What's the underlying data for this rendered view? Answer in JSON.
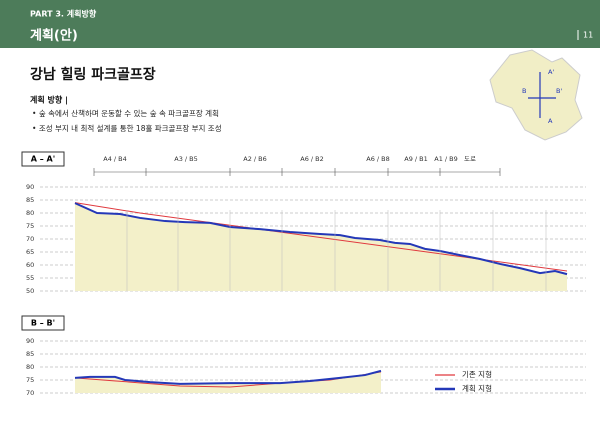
{
  "header": {
    "part": "PART 3. 계획방향",
    "title": "계획(안)",
    "page": "11"
  },
  "title": "강남 힐링 파크골프장",
  "subtitle": "계획 방향 |",
  "bullets": [
    "숲 속에서 산책하며 운동할 수 있는 숲 속 파크골프장 계획",
    "조성 부지 내 최적 설계를 통한 18홀 파크골프장 부지 조성"
  ],
  "map_labels": [
    "A'",
    "B",
    "B'",
    "A"
  ],
  "chart_data": [
    {
      "type": "line",
      "title": "A – A'",
      "annotations": [
        "A4 / B4",
        "A3 / B5",
        "A2 / B6",
        "A6 / B2",
        "A6 / B8",
        "A9 / B1",
        "A1 / B9",
        "도로"
      ],
      "xlim": [
        0,
        492
      ],
      "ylim": [
        50,
        90
      ],
      "yticks": [
        90,
        85,
        80,
        75,
        70,
        65,
        60,
        55,
        50
      ],
      "grid": true,
      "series": [
        {
          "name": "기존 지형",
          "color": "#e0393e",
          "x": [
            0,
            65,
            492
          ],
          "values": [
            84,
            80,
            57.7
          ]
        },
        {
          "name": "계획 지형",
          "color": "#2438b8",
          "x": [
            0,
            22,
            45,
            65,
            90,
            110,
            135,
            155,
            185,
            215,
            245,
            265,
            280,
            305,
            320,
            335,
            350,
            365,
            385,
            405,
            425,
            445,
            465,
            480,
            492
          ],
          "values": [
            83.8,
            80,
            79.6,
            78.1,
            76.9,
            76.5,
            76.2,
            74.6,
            73.8,
            72.7,
            71.9,
            71.5,
            70.4,
            69.6,
            68.5,
            68.1,
            66.2,
            65.4,
            63.8,
            62.3,
            60.4,
            58.8,
            56.9,
            57.7,
            56.5
          ]
        }
      ]
    },
    {
      "type": "line",
      "title": "B – B'",
      "xlim": [
        0,
        306
      ],
      "ylim": [
        70,
        90
      ],
      "yticks": [
        90,
        85,
        80,
        75,
        70
      ],
      "grid": true,
      "series": [
        {
          "name": "기존 지형",
          "color": "#e0393e",
          "x": [
            0,
            55,
            105,
            155,
            205,
            255,
            306
          ],
          "values": [
            75.8,
            74.2,
            72.7,
            72.3,
            73.8,
            75,
            78.1
          ]
        },
        {
          "name": "계획 지형",
          "color": "#2438b8",
          "x": [
            0,
            15,
            40,
            50,
            75,
            105,
            155,
            205,
            235,
            265,
            290,
            306
          ],
          "values": [
            75.8,
            76.2,
            76.2,
            75,
            74.2,
            73.5,
            73.8,
            73.8,
            74.6,
            75.8,
            76.9,
            78.5
          ]
        }
      ]
    }
  ]
}
